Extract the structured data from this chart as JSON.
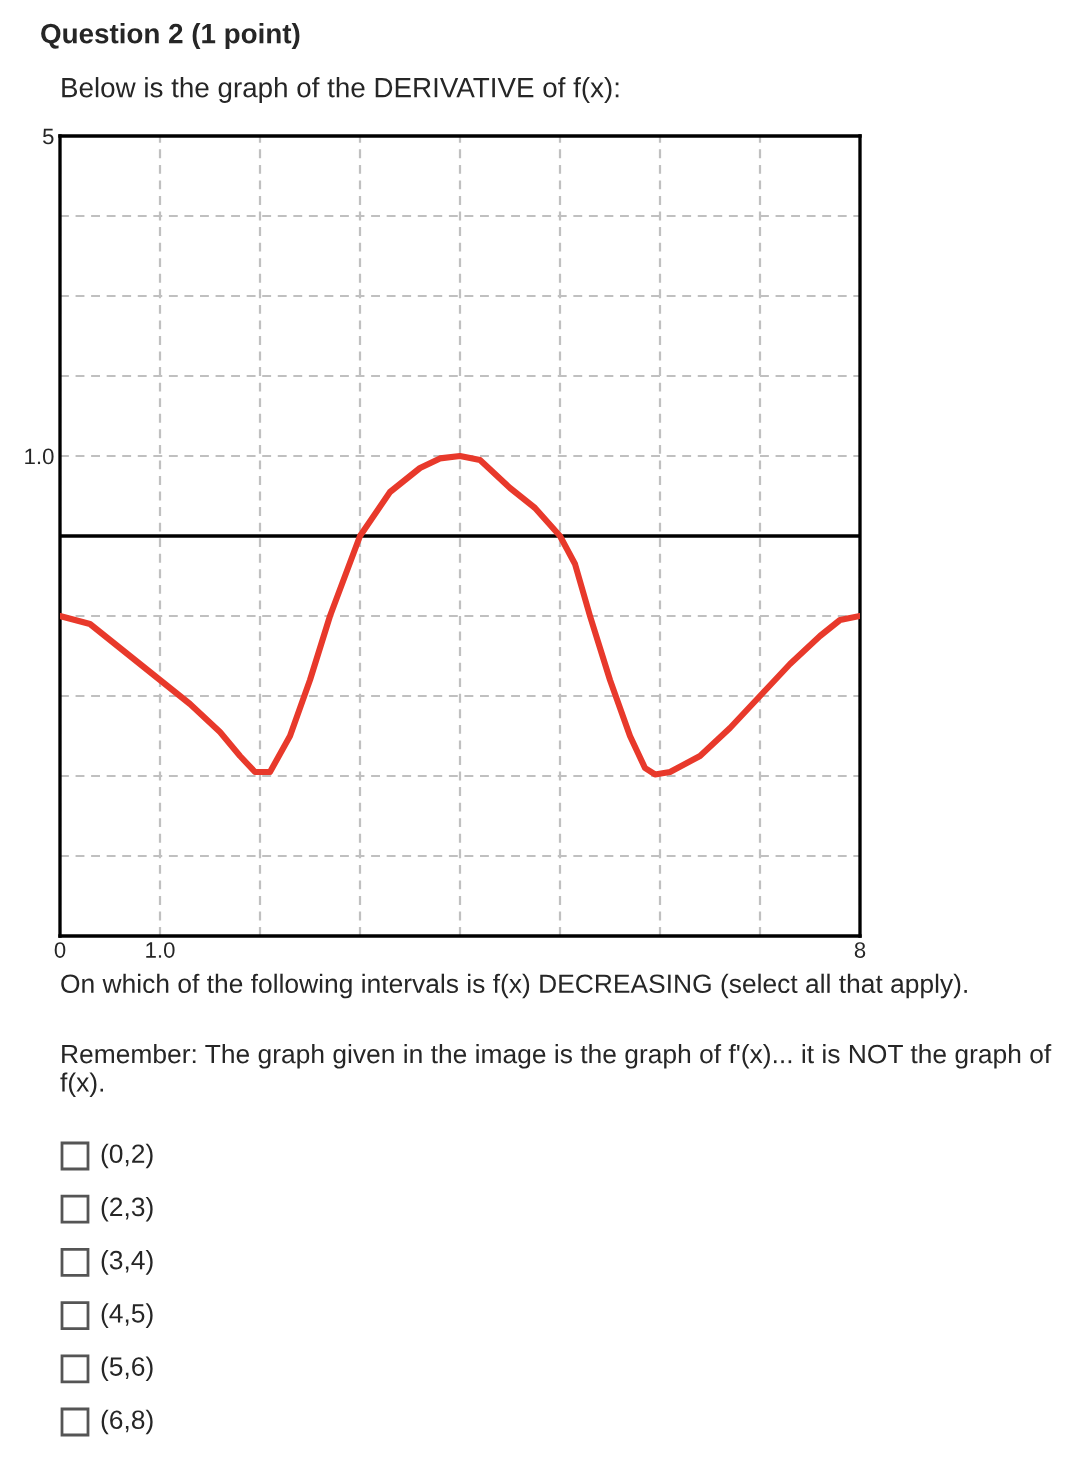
{
  "chart_data": {
    "type": "line",
    "title": "Question 2 (1 point)",
    "subtitle": "Below is the graph of the DERIVATIVE of f(x):",
    "annotations": [
      "On which of the following intervals is f(x) DECREASING (select all that apply).",
      "Remember: The graph given in the image is the graph of f'(x)... it is NOT the graph of f(x).",
      "(0,2)",
      "(2,3)",
      "(3,4)",
      "(4,5)",
      "(5,6)",
      "(6,8)"
    ],
    "x": [
      0,
      0.3,
      0.6,
      1,
      1.3,
      1.6,
      1.8,
      1.95,
      2.1,
      2.3,
      2.5,
      2.7,
      2.85,
      3,
      3.3,
      3.6,
      3.8,
      4,
      4.2,
      4.5,
      4.75,
      5,
      5.15,
      5.3,
      5.5,
      5.7,
      5.85,
      5.95,
      6.1,
      6.4,
      6.7,
      7,
      7.3,
      7.6,
      7.8,
      8
    ],
    "series": [
      {
        "color": "#e8392b",
        "values": [
          -1,
          -1.1,
          -1.4,
          -1.8,
          -2.1,
          -2.45,
          -2.75,
          -2.95,
          -2.95,
          -2.5,
          -1.8,
          -1.0,
          -0.5,
          0,
          0.55,
          0.85,
          0.97,
          1.0,
          0.95,
          0.6,
          0.35,
          0,
          -0.35,
          -1.0,
          -1.8,
          -2.5,
          -2.9,
          -2.98,
          -2.95,
          -2.75,
          -2.4,
          -2.0,
          -1.6,
          -1.25,
          -1.05,
          -1
        ]
      }
    ],
    "xlim": [
      0,
      8
    ],
    "ylim": [
      -5,
      5
    ],
    "xticks": [
      0,
      {
        "value": 1,
        "label": "1.0"
      },
      {
        "value": 2,
        "label": null
      },
      {
        "value": 3,
        "label": null
      },
      {
        "value": 4,
        "label": null
      },
      {
        "value": 5,
        "label": null
      },
      {
        "value": 6,
        "label": null
      },
      {
        "value": 7,
        "label": null
      },
      8
    ],
    "yticks": [
      {
        "value": -5,
        "label": null
      },
      {
        "value": -4,
        "label": null
      },
      {
        "value": -3,
        "label": null
      },
      {
        "value": -2,
        "label": null
      },
      {
        "value": -1,
        "label": null
      },
      {
        "value": 0,
        "label": null
      },
      {
        "value": 1,
        "label": "1.0"
      },
      {
        "value": 2,
        "label": null
      },
      {
        "value": 3,
        "label": null
      },
      {
        "value": 4,
        "label": null
      },
      5
    ],
    "ref_lines": [
      {
        "axis": "y",
        "value": 0,
        "color": "#000000"
      }
    ],
    "grid": true,
    "marker": "none",
    "line_style": "solid"
  }
}
